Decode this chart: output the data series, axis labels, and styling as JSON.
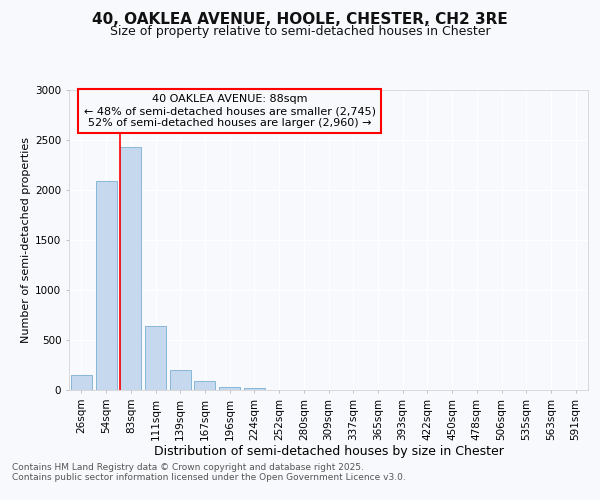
{
  "title1": "40, OAKLEA AVENUE, HOOLE, CHESTER, CH2 3RE",
  "title2": "Size of property relative to semi-detached houses in Chester",
  "xlabel": "Distribution of semi-detached houses by size in Chester",
  "ylabel": "Number of semi-detached properties",
  "categories": [
    "26sqm",
    "54sqm",
    "83sqm",
    "111sqm",
    "139sqm",
    "167sqm",
    "196sqm",
    "224sqm",
    "252sqm",
    "280sqm",
    "309sqm",
    "337sqm",
    "365sqm",
    "393sqm",
    "422sqm",
    "450sqm",
    "478sqm",
    "506sqm",
    "535sqm",
    "563sqm",
    "591sqm"
  ],
  "values": [
    155,
    2090,
    2435,
    645,
    200,
    90,
    35,
    20,
    5,
    5,
    0,
    0,
    0,
    0,
    0,
    0,
    0,
    0,
    0,
    0,
    0
  ],
  "bar_color": "#c5d8ed",
  "bar_edgecolor": "#7aafd4",
  "red_line_x": 2.0,
  "annotation_title": "40 OAKLEA AVENUE: 88sqm",
  "annotation_line1": "← 48% of semi-detached houses are smaller (2,745)",
  "annotation_line2": "52% of semi-detached houses are larger (2,960) →",
  "footer1": "Contains HM Land Registry data © Crown copyright and database right 2025.",
  "footer2": "Contains public sector information licensed under the Open Government Licence v3.0.",
  "ylim_max": 3000,
  "yticks": [
    0,
    500,
    1000,
    1500,
    2000,
    2500,
    3000
  ],
  "bg_color": "#f7f9fc",
  "grid_color": "#ffffff",
  "title1_fontsize": 11,
  "title2_fontsize": 9,
  "ylabel_fontsize": 8,
  "xlabel_fontsize": 9,
  "tick_fontsize": 7.5,
  "ann_fontsize": 8,
  "footer_fontsize": 6.5
}
